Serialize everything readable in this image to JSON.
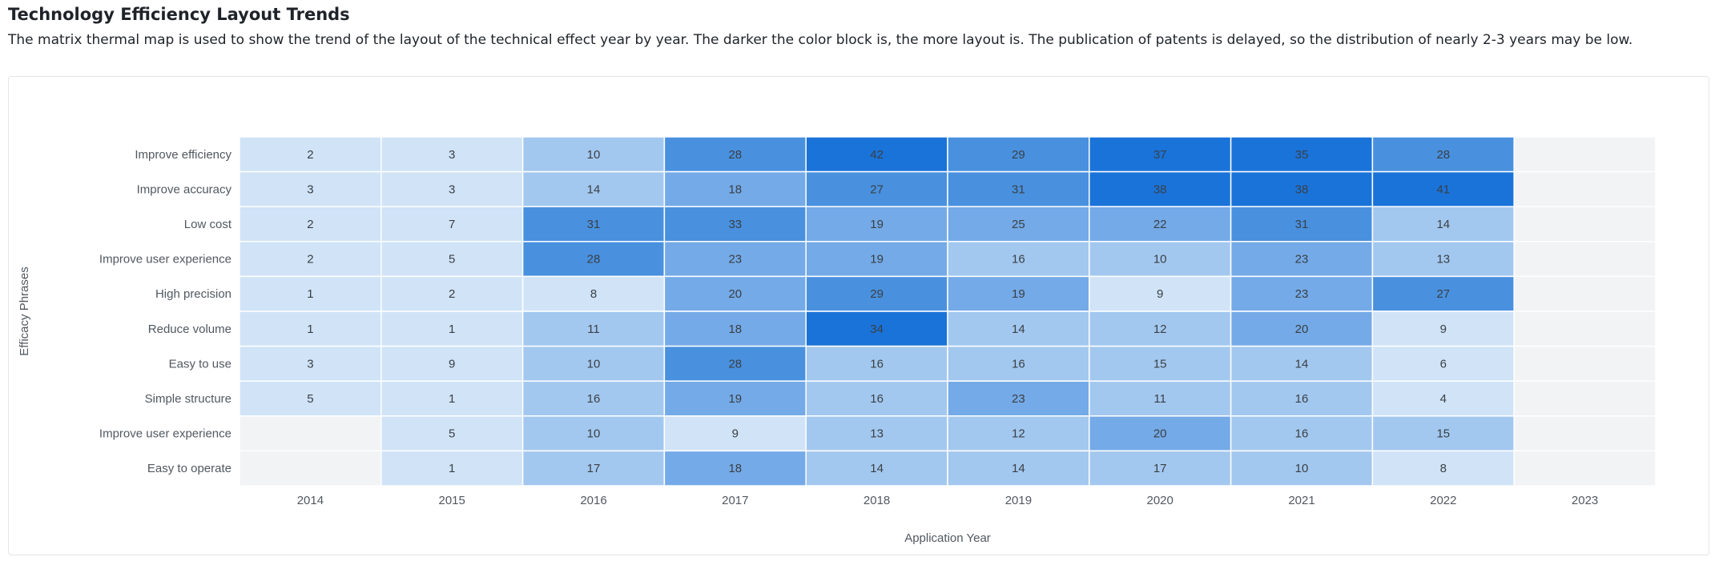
{
  "page": {
    "title": "Technology Efficiency Layout Trends",
    "description": "The matrix thermal map is used to show the trend of the layout of the technical effect year by year. The darker the color block is, the more layout is. The publication of patents is delayed, so the distribution of nearly 2-3 years may be low."
  },
  "colors": {
    "empty": "#f2f3f5",
    "scale": [
      "#d0e3f7",
      "#a3c8ef",
      "#74aae7",
      "#4991df",
      "#1a73d9"
    ],
    "label": "#515860",
    "cell_text": "#3a3f45",
    "grid_line": "#ffffff"
  },
  "chart_data": {
    "type": "heatmap",
    "title": "",
    "xlabel": "Application Year",
    "ylabel": "Efficacy Phrases",
    "x": [
      "2014",
      "2015",
      "2016",
      "2017",
      "2018",
      "2019",
      "2020",
      "2021",
      "2022",
      "2023"
    ],
    "y": [
      "Improve efficiency",
      "Improve accuracy",
      "Low cost",
      "Improve user experience",
      "High precision",
      "Reduce volume",
      "Easy to use",
      "Simple structure",
      "Improve user experience",
      "Easy to operate"
    ],
    "values": [
      [
        2,
        3,
        10,
        28,
        42,
        29,
        37,
        35,
        28,
        null
      ],
      [
        3,
        3,
        14,
        18,
        27,
        31,
        38,
        38,
        41,
        null
      ],
      [
        2,
        7,
        31,
        33,
        19,
        25,
        22,
        31,
        14,
        null
      ],
      [
        2,
        5,
        28,
        23,
        19,
        16,
        10,
        23,
        13,
        null
      ],
      [
        1,
        2,
        8,
        20,
        29,
        19,
        9,
        23,
        27,
        null
      ],
      [
        1,
        1,
        11,
        18,
        34,
        14,
        12,
        20,
        9,
        null
      ],
      [
        3,
        9,
        10,
        28,
        16,
        16,
        15,
        14,
        6,
        null
      ],
      [
        5,
        1,
        16,
        19,
        16,
        23,
        11,
        16,
        4,
        null
      ],
      [
        null,
        5,
        10,
        9,
        13,
        12,
        20,
        16,
        15,
        null
      ],
      [
        null,
        1,
        17,
        18,
        14,
        14,
        17,
        10,
        8,
        null
      ]
    ],
    "color_scale_thresholds": [
      9,
      17,
      25,
      33
    ]
  }
}
